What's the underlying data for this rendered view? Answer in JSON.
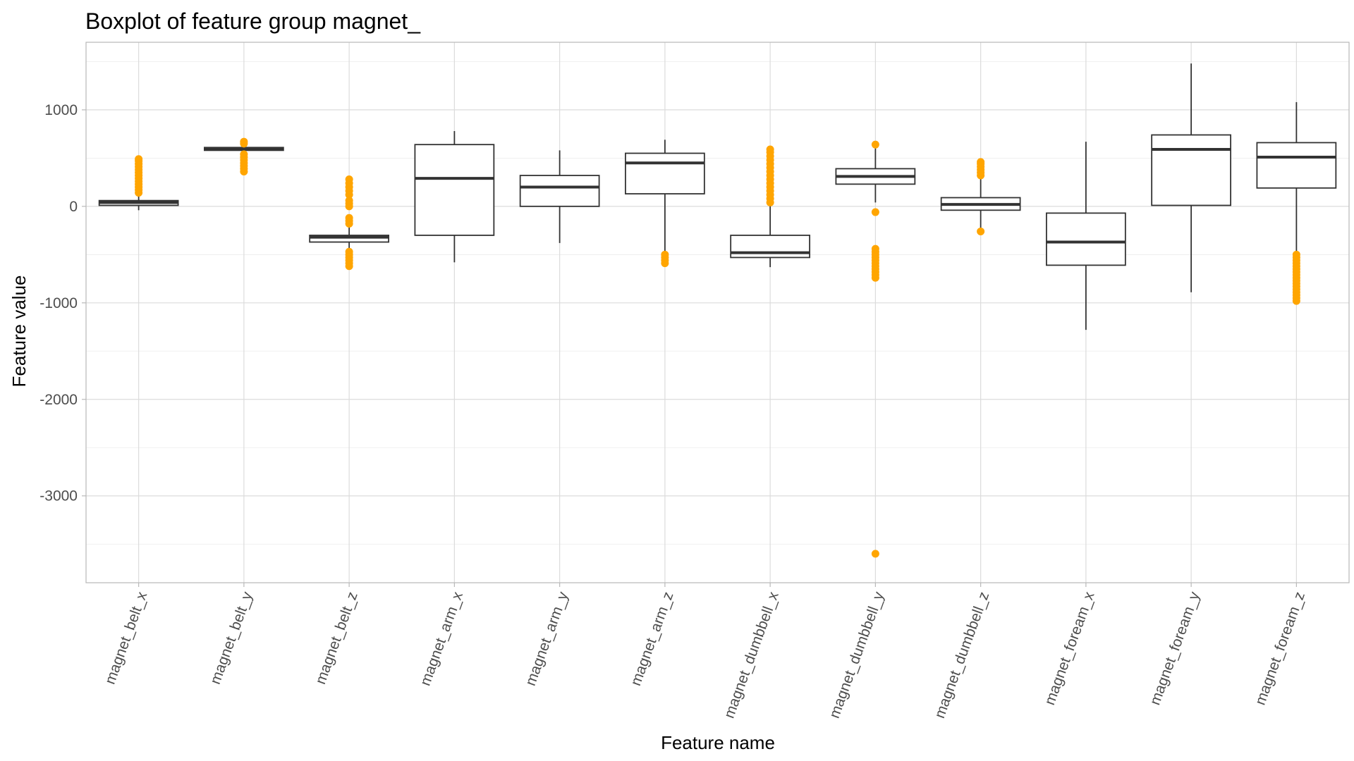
{
  "chart_data": {
    "type": "boxplot",
    "title": "Boxplot of feature group magnet_",
    "xlabel": "Feature name",
    "ylabel": "Feature value",
    "ylim": [
      -3900,
      1700
    ],
    "y_ticks": [
      1000,
      0,
      -1000,
      -2000,
      -3000
    ],
    "outlier_color": "#FFA500",
    "grid": true,
    "categories": [
      "magnet_belt_x",
      "magnet_belt_y",
      "magnet_belt_z",
      "magnet_arm_x",
      "magnet_arm_y",
      "magnet_arm_z",
      "magnet_dumbbell_x",
      "magnet_dumbbell_y",
      "magnet_dumbbell_z",
      "magnet_foream_x",
      "magnet_foream_y",
      "magnet_foream_z"
    ],
    "boxes": [
      {
        "name": "magnet_belt_x",
        "whisker_low": -40,
        "q1": 10,
        "median": 40,
        "q3": 60,
        "whisker_high": 120,
        "outliers": [
          140,
          170,
          200,
          230,
          260,
          290,
          320,
          350,
          380,
          410,
          440,
          470,
          490
        ]
      },
      {
        "name": "magnet_belt_y",
        "whisker_low": 560,
        "q1": 580,
        "median": 600,
        "q3": 610,
        "whisker_high": 630,
        "outliers": [
          360,
          390,
          420,
          450,
          480,
          510,
          540,
          650,
          670
        ]
      },
      {
        "name": "magnet_belt_z",
        "whisker_low": -460,
        "q1": -370,
        "median": -320,
        "q3": -300,
        "whisker_high": -220,
        "outliers": [
          -620,
          -590,
          -560,
          -530,
          -500,
          -470,
          -180,
          -150,
          -120,
          0,
          30,
          60,
          120,
          160,
          200,
          240,
          280
        ]
      },
      {
        "name": "magnet_arm_x",
        "whisker_low": -580,
        "q1": -300,
        "median": 290,
        "q3": 640,
        "whisker_high": 780,
        "outliers": []
      },
      {
        "name": "magnet_arm_y",
        "whisker_low": -380,
        "q1": 0,
        "median": 200,
        "q3": 320,
        "whisker_high": 580,
        "outliers": []
      },
      {
        "name": "magnet_arm_z",
        "whisker_low": -470,
        "q1": 130,
        "median": 450,
        "q3": 550,
        "whisker_high": 690,
        "outliers": [
          -590,
          -560,
          -530,
          -500
        ]
      },
      {
        "name": "magnet_dumbbell_x",
        "whisker_low": -630,
        "q1": -530,
        "median": -480,
        "q3": -300,
        "whisker_high": 20,
        "outliers": [
          40,
          80,
          120,
          160,
          200,
          240,
          280,
          320,
          360,
          400,
          440,
          480,
          520,
          560,
          590
        ]
      },
      {
        "name": "magnet_dumbbell_y",
        "whisker_low": 40,
        "q1": 230,
        "median": 310,
        "q3": 390,
        "whisker_high": 600,
        "outliers": [
          -3600,
          -740,
          -710,
          -680,
          -650,
          -620,
          -590,
          -560,
          -530,
          -500,
          -470,
          -440,
          -60,
          640
        ]
      },
      {
        "name": "magnet_dumbbell_z",
        "whisker_low": -240,
        "q1": -40,
        "median": 20,
        "q3": 90,
        "whisker_high": 290,
        "outliers": [
          -260,
          320,
          350,
          380,
          410,
          440,
          460
        ]
      },
      {
        "name": "magnet_foream_x",
        "whisker_low": -1280,
        "q1": -610,
        "median": -370,
        "q3": -70,
        "whisker_high": 670,
        "outliers": []
      },
      {
        "name": "magnet_foream_y",
        "whisker_low": -890,
        "q1": 10,
        "median": 590,
        "q3": 740,
        "whisker_high": 1480,
        "outliers": []
      },
      {
        "name": "magnet_foream_z",
        "whisker_low": -470,
        "q1": 190,
        "median": 510,
        "q3": 660,
        "whisker_high": 1080,
        "outliers": [
          -980,
          -950,
          -920,
          -890,
          -860,
          -830,
          -800,
          -770,
          -740,
          -710,
          -680,
          -650,
          -620,
          -590,
          -560,
          -530,
          -500
        ]
      }
    ]
  }
}
